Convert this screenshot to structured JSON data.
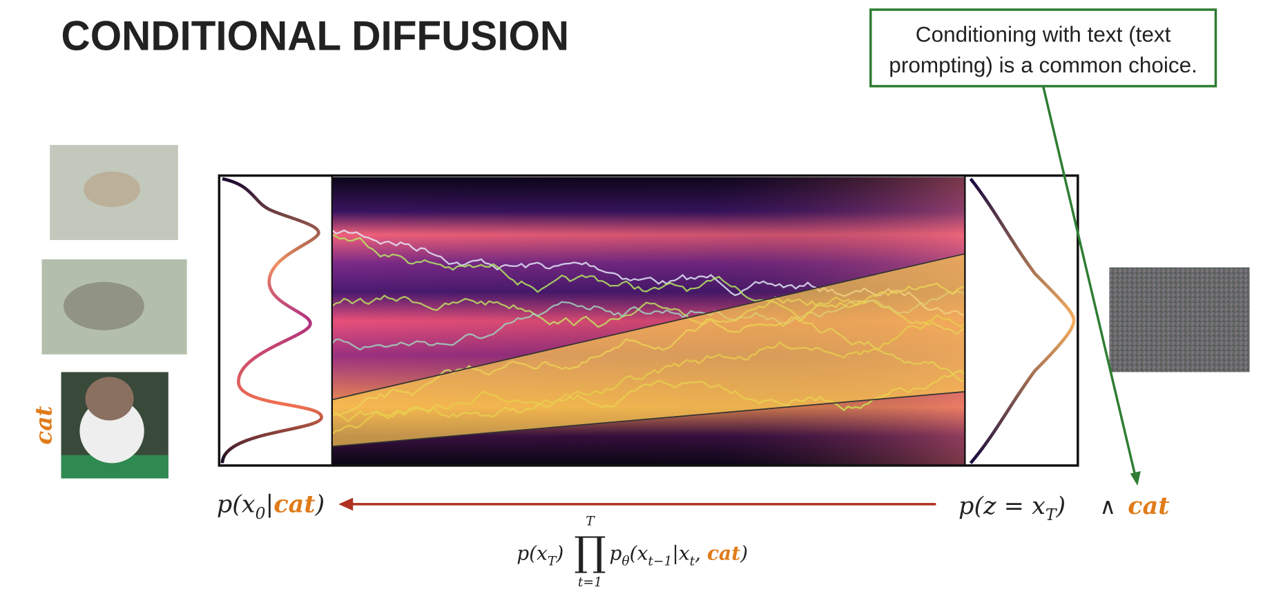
{
  "title": "CONDITIONAL DIFFUSION",
  "callout": [
    "Conditioning with text (text",
    "prompting) is a common choice."
  ],
  "side_label": "cat",
  "left_formula": [
    "p(x",
    "0",
    "|",
    "cat",
    ")"
  ],
  "right_formula": [
    "p(z = x",
    "T",
    ")",
    "∧",
    "cat"
  ],
  "product_formula": [
    "p(x",
    "T",
    ")",
    "∏",
    "T",
    "t=1",
    "p",
    "θ",
    "(x",
    "t−1",
    "|x",
    "t",
    ", ",
    "cat",
    ")"
  ]
}
